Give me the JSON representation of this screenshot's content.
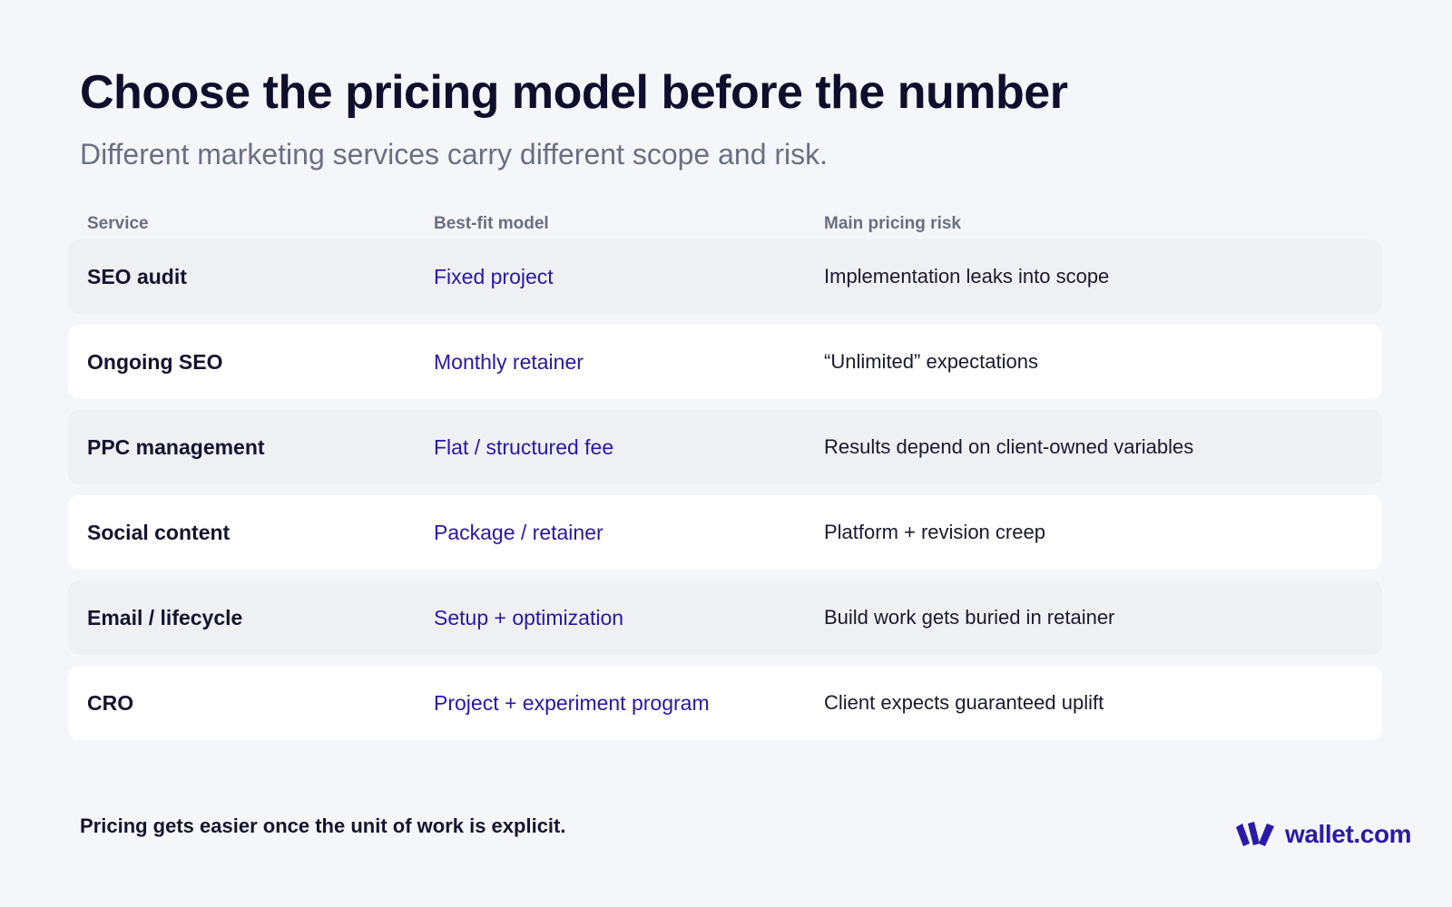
{
  "header": {
    "title": "Choose the pricing model before the number",
    "subtitle": "Different marketing services carry different scope and risk."
  },
  "table": {
    "columns": [
      "Service",
      "Best-fit model",
      "Main pricing risk"
    ],
    "rows": [
      {
        "service": "SEO audit",
        "model": "Fixed project",
        "risk": "Implementation leaks into scope"
      },
      {
        "service": "Ongoing SEO",
        "model": "Monthly retainer",
        "risk": "“Unlimited” expectations"
      },
      {
        "service": "PPC management",
        "model": "Flat / structured fee",
        "risk": "Results depend on client-owned variables"
      },
      {
        "service": "Social content",
        "model": "Package / retainer",
        "risk": "Platform + revision creep"
      },
      {
        "service": "Email / lifecycle",
        "model": "Setup + optimization",
        "risk": "Build work gets buried in retainer"
      },
      {
        "service": "CRO",
        "model": "Project + experiment program",
        "risk": "Client expects guaranteed uplift"
      }
    ]
  },
  "footer": {
    "note": "Pricing gets easier once the unit of work is explicit.",
    "brand_name": "wallet.com",
    "brand_icon": "wallet-logo-icon"
  },
  "colors": {
    "background": "#f5f6f9",
    "title": "#0f0f2d",
    "subtitle": "#6b6f82",
    "model_accent": "#2a17a5",
    "row_shade": "#eff0f4",
    "row_plain": "#ffffff",
    "brand": "#2b1aa8"
  }
}
